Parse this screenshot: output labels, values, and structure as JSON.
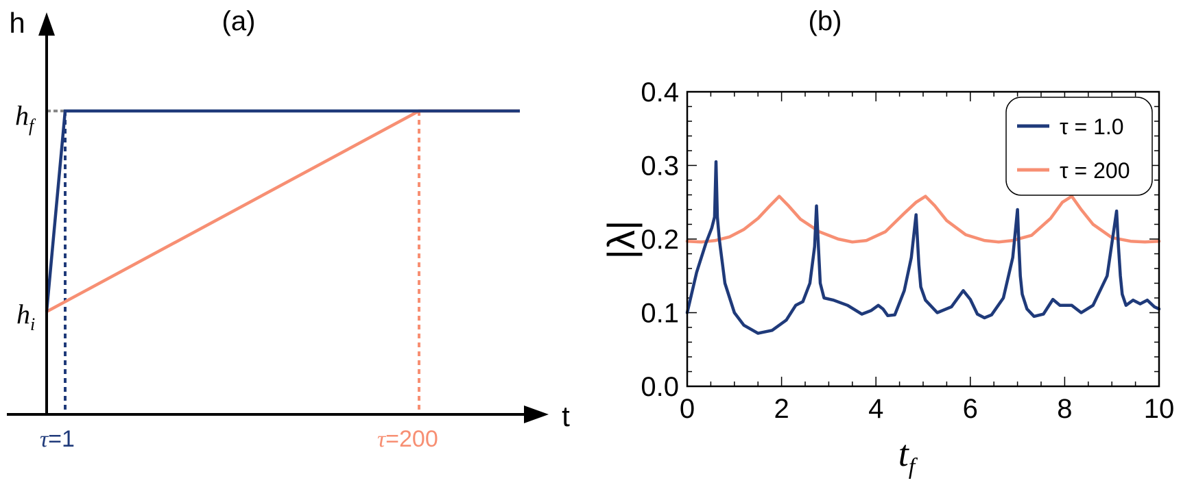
{
  "chart_data": [
    {
      "panel_label": "(a)",
      "type": "line",
      "xlabel": "t",
      "ylabel": "h",
      "y_tick_labels": {
        "hf": {
          "base": "h",
          "sub": "f"
        },
        "hi": {
          "base": "h",
          "sub": "i"
        }
      },
      "x_tick_labels": [
        {
          "prefix": "τ",
          "text": "=1",
          "color": "#1f3a7a"
        },
        {
          "prefix": "τ",
          "text": "=200",
          "color": "#f78f73"
        }
      ],
      "series": [
        {
          "tau": 1,
          "color": "#1f3a7a",
          "x": [
            0,
            1,
            250
          ],
          "y": [
            0,
            1,
            1
          ]
        },
        {
          "tau": 200,
          "color": "#f78f73",
          "x": [
            0,
            200,
            250
          ],
          "y": [
            0,
            1,
            1
          ]
        }
      ],
      "markers": [
        {
          "x": 1,
          "style": "dotted",
          "color": "#1f3a7a"
        },
        {
          "x": 200,
          "style": "dotted",
          "color": "#f78f73"
        }
      ],
      "hf_guide_color": "#888888"
    },
    {
      "panel_label": "(b)",
      "type": "line",
      "xlabel": {
        "base": "t",
        "sub": "f"
      },
      "ylabel": "|λ|",
      "xlim": [
        0,
        10
      ],
      "ylim": [
        0,
        0.4
      ],
      "xticks": [
        "0",
        "2",
        "4",
        "6",
        "8",
        "10"
      ],
      "yticks": [
        "0.0",
        "0.1",
        "0.2",
        "0.3",
        "0.4"
      ],
      "legend": {
        "placement": "top-right",
        "entries": [
          "τ = 1.0",
          "τ = 200"
        ]
      },
      "series": [
        {
          "name": "τ = 1.0",
          "color": "#1f3a7a",
          "x": [
            0,
            0.2,
            0.4,
            0.52,
            0.58,
            0.61,
            0.64,
            0.68,
            0.8,
            1.0,
            1.2,
            1.5,
            1.8,
            2.1,
            2.3,
            2.45,
            2.6,
            2.7,
            2.74,
            2.78,
            2.82,
            2.9,
            3.1,
            3.4,
            3.7,
            3.9,
            4.05,
            4.15,
            4.25,
            4.4,
            4.6,
            4.75,
            4.85,
            4.88,
            4.91,
            4.95,
            5.05,
            5.3,
            5.6,
            5.85,
            6.0,
            6.15,
            6.3,
            6.45,
            6.7,
            6.9,
            7.0,
            7.03,
            7.06,
            7.1,
            7.2,
            7.35,
            7.55,
            7.75,
            7.9,
            8.15,
            8.35,
            8.6,
            8.9,
            9.1,
            9.14,
            9.18,
            9.22,
            9.3,
            9.45,
            9.6,
            9.75,
            9.9,
            10.0
          ],
          "y": [
            0.1,
            0.155,
            0.195,
            0.215,
            0.23,
            0.305,
            0.23,
            0.2,
            0.14,
            0.1,
            0.083,
            0.072,
            0.076,
            0.09,
            0.11,
            0.115,
            0.14,
            0.19,
            0.245,
            0.19,
            0.14,
            0.12,
            0.117,
            0.11,
            0.098,
            0.103,
            0.11,
            0.105,
            0.096,
            0.097,
            0.13,
            0.175,
            0.233,
            0.2,
            0.165,
            0.135,
            0.117,
            0.1,
            0.108,
            0.13,
            0.118,
            0.098,
            0.093,
            0.097,
            0.12,
            0.175,
            0.24,
            0.19,
            0.15,
            0.125,
            0.105,
            0.095,
            0.098,
            0.118,
            0.11,
            0.11,
            0.1,
            0.11,
            0.15,
            0.238,
            0.19,
            0.15,
            0.125,
            0.11,
            0.117,
            0.112,
            0.117,
            0.108,
            0.105
          ]
        },
        {
          "name": "τ = 200",
          "color": "#f78f73",
          "x": [
            0,
            0.3,
            0.6,
            0.9,
            1.2,
            1.5,
            1.75,
            1.95,
            2.15,
            2.4,
            2.8,
            3.2,
            3.5,
            3.8,
            4.2,
            4.6,
            4.85,
            5.05,
            5.25,
            5.5,
            5.9,
            6.3,
            6.6,
            6.9,
            7.3,
            7.7,
            7.95,
            8.15,
            8.35,
            8.6,
            9.0,
            9.4,
            9.7,
            10.0
          ],
          "y": [
            0.197,
            0.196,
            0.198,
            0.203,
            0.213,
            0.228,
            0.245,
            0.258,
            0.245,
            0.227,
            0.21,
            0.2,
            0.196,
            0.198,
            0.21,
            0.235,
            0.25,
            0.258,
            0.245,
            0.225,
            0.206,
            0.198,
            0.196,
            0.198,
            0.205,
            0.228,
            0.25,
            0.258,
            0.24,
            0.22,
            0.202,
            0.197,
            0.196,
            0.197
          ]
        }
      ]
    }
  ]
}
